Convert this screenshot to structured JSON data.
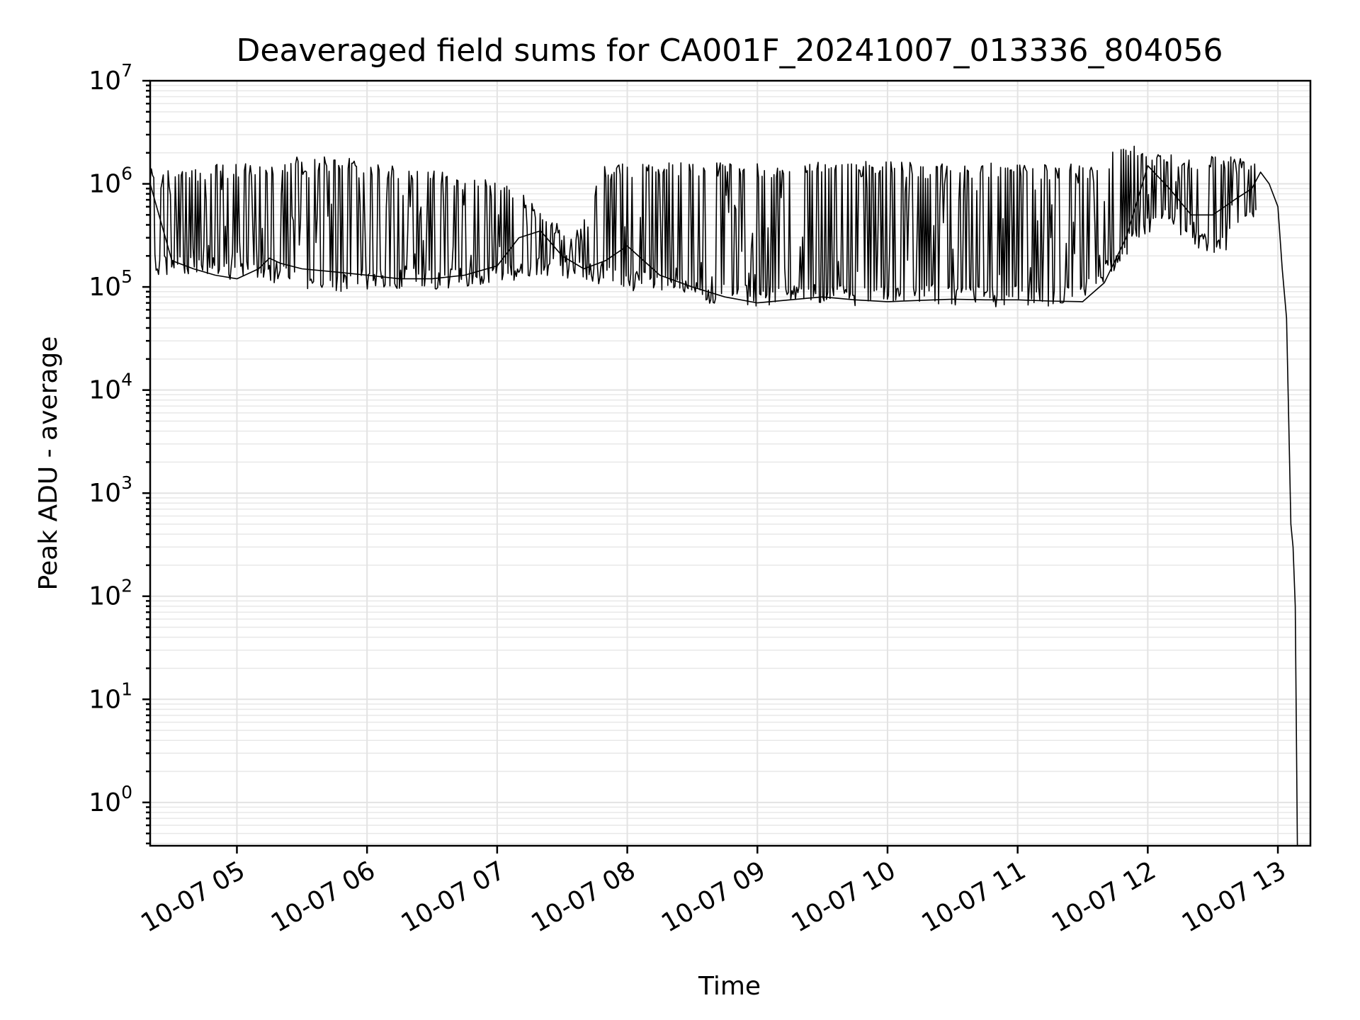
{
  "chart_data": {
    "type": "line",
    "title": "Deaveraged field sums for CA001F_20241007_013336_804056",
    "xlabel": "Time",
    "ylabel": "Peak ADU - average",
    "yscale": "log",
    "ylim": [
      0.38,
      10000000
    ],
    "xlim": [
      "2024-10-07 04:20",
      "2024-10-07 13:15"
    ],
    "x_tick_labels": [
      {
        "t": "2024-10-07 05:00",
        "label": "10-07 05"
      },
      {
        "t": "2024-10-07 06:00",
        "label": "10-07 06"
      },
      {
        "t": "2024-10-07 07:00",
        "label": "10-07 07"
      },
      {
        "t": "2024-10-07 08:00",
        "label": "10-07 08"
      },
      {
        "t": "2024-10-07 09:00",
        "label": "10-07 09"
      },
      {
        "t": "2024-10-07 10:00",
        "label": "10-07 10"
      },
      {
        "t": "2024-10-07 11:00",
        "label": "10-07 11"
      },
      {
        "t": "2024-10-07 12:00",
        "label": "10-07 12"
      },
      {
        "t": "2024-10-07 13:00",
        "label": "10-07 13"
      }
    ],
    "y_tick_labels": [
      {
        "value": 1,
        "base": "10",
        "exp": "0"
      },
      {
        "value": 10,
        "base": "10",
        "exp": "1"
      },
      {
        "value": 100,
        "base": "10",
        "exp": "2"
      },
      {
        "value": 1000,
        "base": "10",
        "exp": "3"
      },
      {
        "value": 10000,
        "base": "10",
        "exp": "4"
      },
      {
        "value": 100000,
        "base": "10",
        "exp": "5"
      },
      {
        "value": 1000000,
        "base": "10",
        "exp": "6"
      },
      {
        "value": 10000000,
        "base": "10",
        "exp": "7"
      }
    ],
    "grid": true,
    "series_color": "#000000",
    "series": [
      {
        "x": [
          "2024-10-07 04:20",
          "2024-10-07 04:30",
          "2024-10-07 04:40",
          "2024-10-07 04:50",
          "2024-10-07 05:00",
          "2024-10-07 05:10",
          "2024-10-07 05:15",
          "2024-10-07 05:20",
          "2024-10-07 05:30",
          "2024-10-07 05:45",
          "2024-10-07 06:00",
          "2024-10-07 06:15",
          "2024-10-07 06:30",
          "2024-10-07 06:45",
          "2024-10-07 07:00",
          "2024-10-07 07:10",
          "2024-10-07 07:20",
          "2024-10-07 07:30",
          "2024-10-07 07:40",
          "2024-10-07 07:50",
          "2024-10-07 08:00",
          "2024-10-07 08:15",
          "2024-10-07 08:30",
          "2024-10-07 08:45",
          "2024-10-07 09:00",
          "2024-10-07 09:15",
          "2024-10-07 09:30",
          "2024-10-07 09:45",
          "2024-10-07 10:00",
          "2024-10-07 10:15",
          "2024-10-07 10:30",
          "2024-10-07 10:45",
          "2024-10-07 11:00",
          "2024-10-07 11:15",
          "2024-10-07 11:30",
          "2024-10-07 11:40",
          "2024-10-07 11:50",
          "2024-10-07 12:00",
          "2024-10-07 12:10",
          "2024-10-07 12:20",
          "2024-10-07 12:30",
          "2024-10-07 12:40",
          "2024-10-07 12:48",
          "2024-10-07 12:52",
          "2024-10-07 12:56",
          "2024-10-07 13:00",
          "2024-10-07 13:02",
          "2024-10-07 13:04",
          "2024-10-07 13:05",
          "2024-10-07 13:06",
          "2024-10-07 13:07",
          "2024-10-07 13:08",
          "2024-10-07 13:09"
        ],
        "y": [
          1000000,
          180000,
          150000,
          130000,
          120000,
          150000,
          190000,
          170000,
          150000,
          140000,
          130000,
          120000,
          120000,
          130000,
          160000,
          300000,
          350000,
          200000,
          150000,
          180000,
          250000,
          130000,
          100000,
          80000,
          70000,
          75000,
          80000,
          75000,
          72000,
          74000,
          76000,
          75000,
          75000,
          73000,
          72000,
          110000,
          300000,
          1500000,
          900000,
          500000,
          500000,
          700000,
          900000,
          1300000,
          1000000,
          600000,
          150000,
          50000,
          5000,
          500,
          300,
          80,
          0.38
        ]
      }
    ],
    "envelope": {
      "x": [
        "2024-10-07 04:20",
        "2024-10-07 04:35",
        "2024-10-07 04:50",
        "2024-10-07 05:05",
        "2024-10-07 05:20",
        "2024-10-07 05:35",
        "2024-10-07 05:50",
        "2024-10-07 06:05",
        "2024-10-07 06:20",
        "2024-10-07 06:35",
        "2024-10-07 06:50",
        "2024-10-07 07:05",
        "2024-10-07 07:20",
        "2024-10-07 07:35",
        "2024-10-07 07:50",
        "2024-10-07 08:05",
        "2024-10-07 08:20",
        "2024-10-07 08:35",
        "2024-10-07 08:50",
        "2024-10-07 09:05",
        "2024-10-07 09:20",
        "2024-10-07 09:35",
        "2024-10-07 09:50",
        "2024-10-07 10:05",
        "2024-10-07 10:20",
        "2024-10-07 10:35",
        "2024-10-07 10:50",
        "2024-10-07 11:05",
        "2024-10-07 11:20",
        "2024-10-07 11:35",
        "2024-10-07 11:50",
        "2024-10-07 12:05",
        "2024-10-07 12:20",
        "2024-10-07 12:35",
        "2024-10-07 12:50"
      ],
      "upper": [
        1400000,
        1500000,
        1550000,
        1600000,
        1800000,
        1850000,
        1800000,
        1600000,
        1500000,
        1300000,
        1200000,
        1000000,
        600000,
        300000,
        1600000,
        1600000,
        1600000,
        1600000,
        1600000,
        1600000,
        1700000,
        1650000,
        1650000,
        1650000,
        1600000,
        1600000,
        1600000,
        1550000,
        1550000,
        1600000,
        2500000,
        2200000,
        2000000,
        1800000,
        2000000
      ],
      "lower": [
        130000,
        130000,
        120000,
        110000,
        110000,
        90000,
        90000,
        95000,
        95000,
        95000,
        95000,
        110000,
        130000,
        120000,
        100000,
        90000,
        80000,
        70000,
        65000,
        65000,
        68000,
        66000,
        64000,
        66000,
        68000,
        65000,
        64000,
        64000,
        65000,
        80000,
        200000,
        400000,
        250000,
        200000,
        500000
      ]
    }
  }
}
